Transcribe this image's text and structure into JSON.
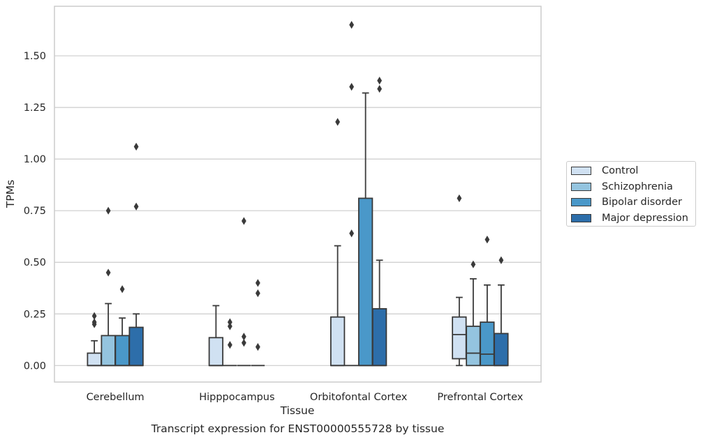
{
  "caption": "Transcript expression for ENST00000555728 by tissue",
  "chart_data": {
    "type": "box",
    "xlabel": "Tissue",
    "ylabel": "TPMs",
    "ylim": [
      -0.08,
      1.74
    ],
    "yticks": [
      0.0,
      0.25,
      0.5,
      0.75,
      1.0,
      1.25,
      1.5
    ],
    "ytick_labels": [
      "0.00",
      "0.25",
      "0.50",
      "0.75",
      "1.00",
      "1.25",
      "1.50"
    ],
    "grid": "horizontal",
    "legend_position": "right",
    "categories": [
      "Cerebellum",
      "Hipppocampus",
      "Orbitofontal Cortex",
      "Prefrontal Cortex"
    ],
    "series": [
      {
        "name": "Control",
        "color": "#d0e1f2",
        "boxes": [
          {
            "q1": 0.0,
            "median": 0.0,
            "q3": 0.06,
            "whisker_low": 0.0,
            "whisker_high": 0.12,
            "outliers": [
              0.24,
              0.21,
              0.2
            ]
          },
          {
            "q1": 0.0,
            "median": 0.0,
            "q3": 0.135,
            "whisker_low": 0.0,
            "whisker_high": 0.29,
            "outliers": []
          },
          {
            "q1": 0.0,
            "median": 0.0,
            "q3": 0.235,
            "whisker_low": 0.0,
            "whisker_high": 0.58,
            "outliers": [
              1.18
            ]
          },
          {
            "q1": 0.033,
            "median": 0.15,
            "q3": 0.235,
            "whisker_low": 0.0,
            "whisker_high": 0.33,
            "outliers": [
              0.81
            ]
          }
        ]
      },
      {
        "name": "Schizophrenia",
        "color": "#94c4df",
        "boxes": [
          {
            "q1": 0.0,
            "median": 0.0,
            "q3": 0.145,
            "whisker_low": 0.0,
            "whisker_high": 0.3,
            "outliers": [
              0.75,
              0.45
            ]
          },
          {
            "q1": 0.0,
            "median": 0.0,
            "q3": 0.0,
            "whisker_low": 0.0,
            "whisker_high": 0.0,
            "outliers": [
              0.21,
              0.19,
              0.1
            ]
          },
          {
            "q1": 0.0,
            "median": 0.0,
            "q3": 0.0,
            "whisker_low": 0.0,
            "whisker_high": 0.0,
            "outliers": [
              1.65,
              1.35,
              0.64
            ]
          },
          {
            "q1": 0.0,
            "median": 0.06,
            "q3": 0.19,
            "whisker_low": 0.0,
            "whisker_high": 0.42,
            "outliers": [
              0.49
            ]
          }
        ]
      },
      {
        "name": "Bipolar disorder",
        "color": "#4a98c9",
        "boxes": [
          {
            "q1": 0.0,
            "median": 0.0,
            "q3": 0.145,
            "whisker_low": 0.0,
            "whisker_high": 0.23,
            "outliers": [
              0.37
            ]
          },
          {
            "q1": 0.0,
            "median": 0.0,
            "q3": 0.0,
            "whisker_low": 0.0,
            "whisker_high": 0.0,
            "outliers": [
              0.7,
              0.14,
              0.11
            ]
          },
          {
            "q1": 0.0,
            "median": 0.0,
            "q3": 0.81,
            "whisker_low": 0.0,
            "whisker_high": 1.32,
            "outliers": []
          },
          {
            "q1": 0.0,
            "median": 0.055,
            "q3": 0.21,
            "whisker_low": 0.0,
            "whisker_high": 0.39,
            "outliers": [
              0.61
            ]
          }
        ]
      },
      {
        "name": "Major depression",
        "color": "#2d6eaa",
        "boxes": [
          {
            "q1": 0.0,
            "median": 0.0,
            "q3": 0.185,
            "whisker_low": 0.0,
            "whisker_high": 0.25,
            "outliers": [
              1.06,
              0.77
            ]
          },
          {
            "q1": 0.0,
            "median": 0.0,
            "q3": 0.0,
            "whisker_low": 0.0,
            "whisker_high": 0.0,
            "outliers": [
              0.4,
              0.35,
              0.09
            ]
          },
          {
            "q1": 0.0,
            "median": 0.0,
            "q3": 0.275,
            "whisker_low": 0.0,
            "whisker_high": 0.51,
            "outliers": [
              1.38,
              1.34
            ]
          },
          {
            "q1": 0.0,
            "median": 0.0,
            "q3": 0.155,
            "whisker_low": 0.0,
            "whisker_high": 0.39,
            "outliers": [
              0.51
            ]
          }
        ]
      }
    ]
  }
}
